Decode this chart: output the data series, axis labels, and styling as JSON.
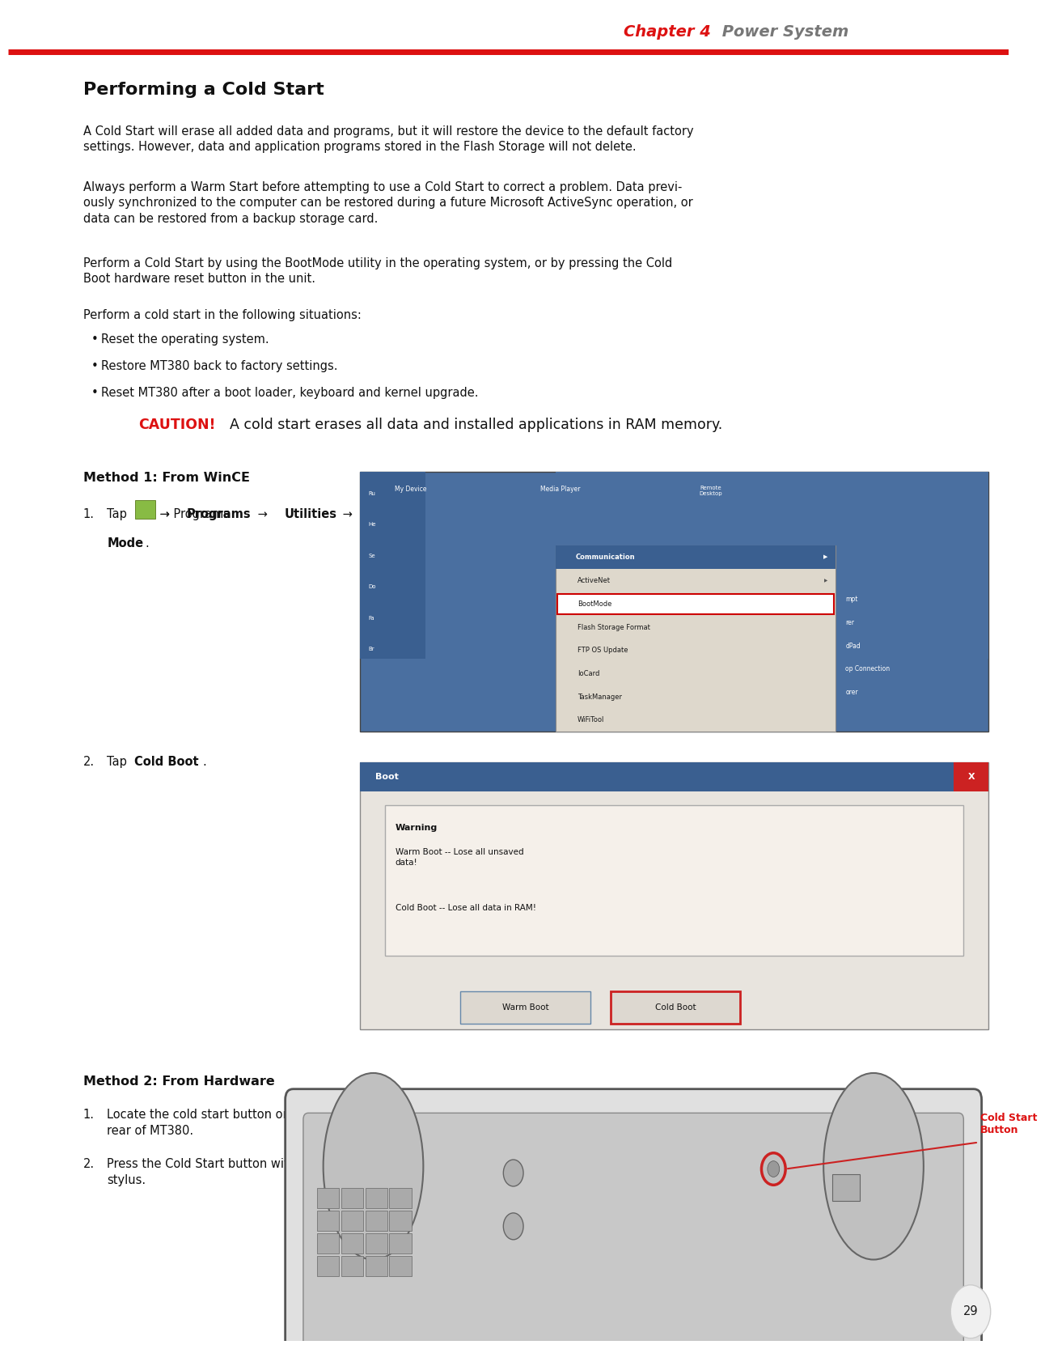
{
  "bg_color": "#ffffff",
  "header_line_color": "#dd1111",
  "header_chapter_color": "#dd1111",
  "header_section_color": "#777777",
  "title": "Performing a Cold Start",
  "para1": "A Cold Start will erase all added data and programs, but it will restore the device to the default factory\nsettings. However, data and application programs stored in the Flash Storage will not delete.",
  "para2": "Always perform a Warm Start before attempting to use a Cold Start to correct a problem. Data previ-\nously synchronized to the computer can be restored during a future Microsoft ActiveSync operation, or\ndata can be restored from a backup storage card.",
  "para3": "Perform a Cold Start by using the BootMode utility in the operating system, or by pressing the Cold\nBoot hardware reset button in the unit.",
  "para4": "Perform a cold start in the following situations:",
  "bullets": [
    "Reset the operating system.",
    "Restore MT380 back to factory settings.",
    "Reset MT380 after a boot loader, keyboard and kernel upgrade."
  ],
  "caution_label": "CAUTION!",
  "caution_text": "  A cold start erases all data and installed applications in RAM memory.",
  "caution_color": "#dd1111",
  "method1_title": "Method 1: From WinCE",
  "method1_step2": "2.\tTap Cold Boot.",
  "method2_title": "Method 2: From Hardware",
  "method2_step1": "1.\tLocate the cold start button on the\n\t   rear of MT380.",
  "method2_step2": "2.\tPress the Cold Start button with a\n\t   stylus.",
  "cold_start_label": "Cold Start\nButton",
  "cold_start_label_color": "#dd1111",
  "page_number": "29",
  "lm": 0.075,
  "body_fs": 10.5,
  "body_color": "#111111"
}
